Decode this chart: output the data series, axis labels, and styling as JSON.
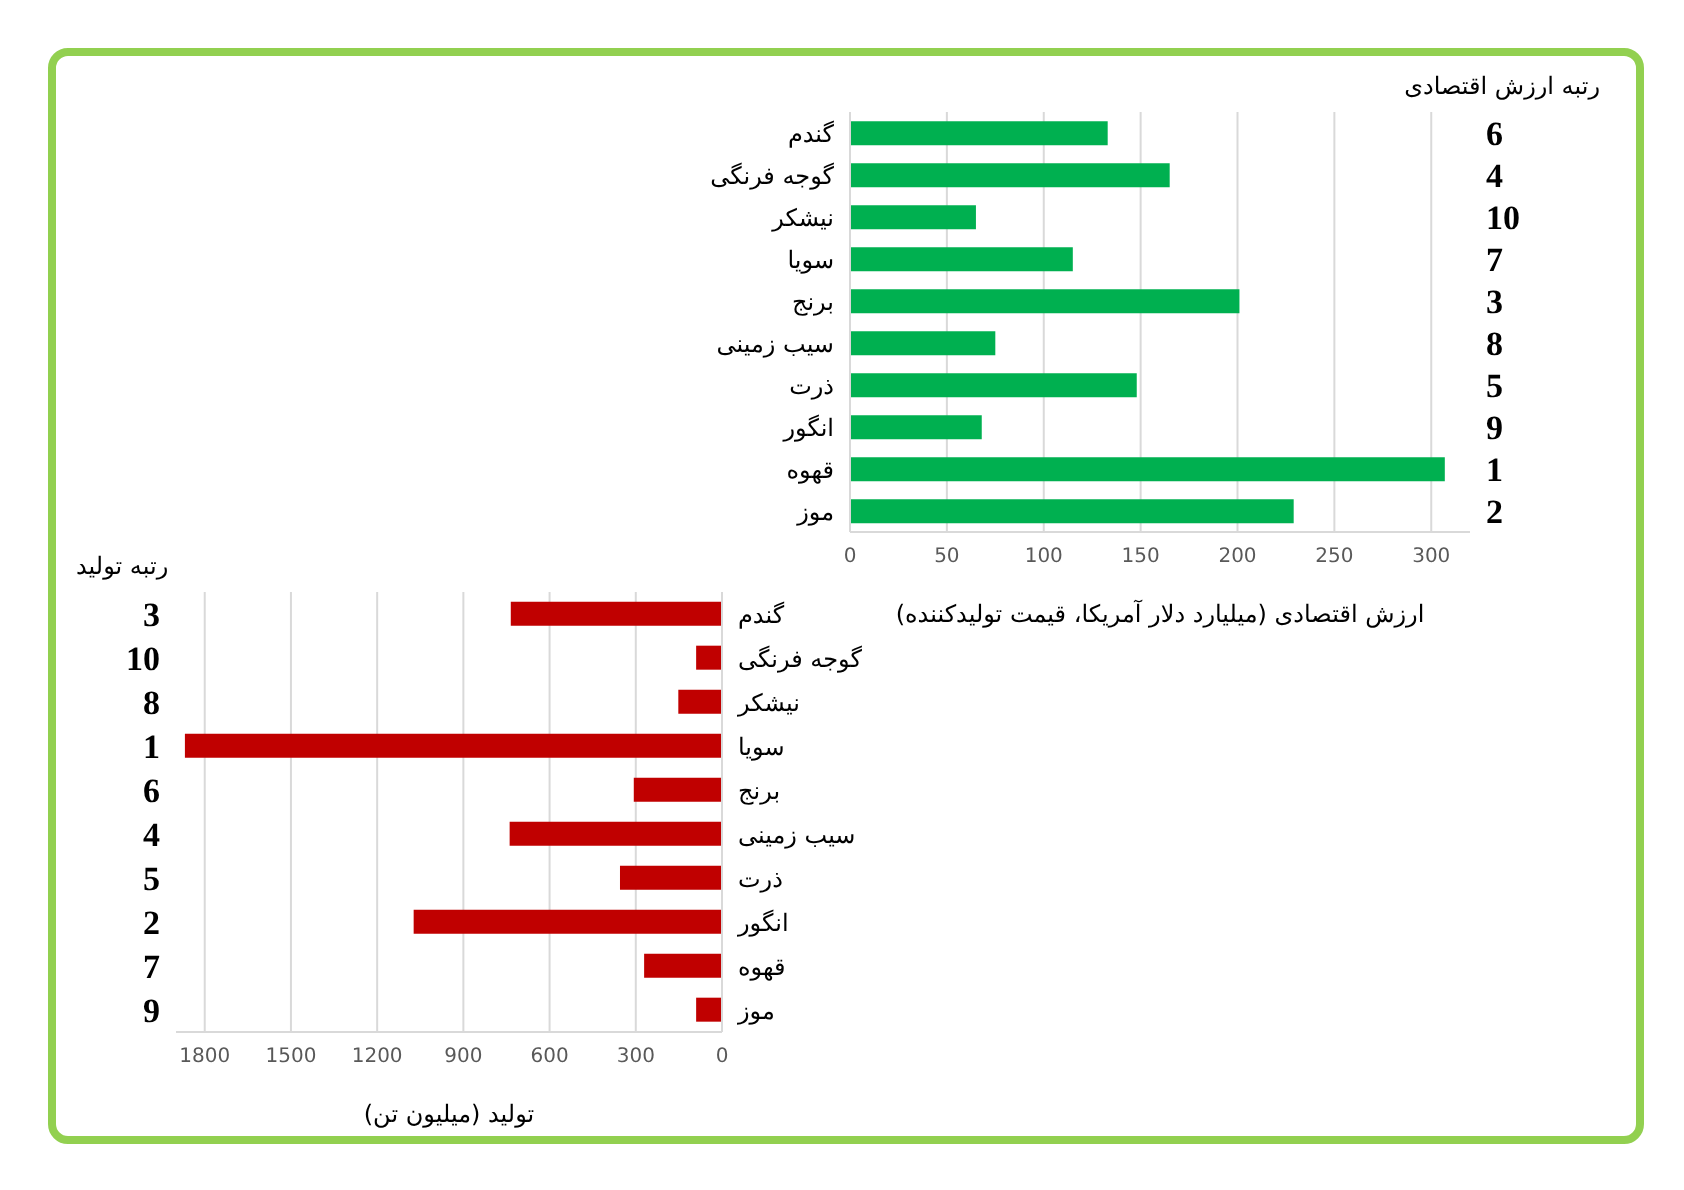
{
  "chart_data": [
    {
      "type": "bar",
      "orientation": "horizontal",
      "categories": [
        "گندم",
        "گوجه فرنگی",
        "نیشکر",
        "سویا",
        "برنج",
        "سیب زمینی",
        "ذرت",
        "انگور",
        "قهوه",
        "موز"
      ],
      "values": [
        133,
        165,
        65,
        115,
        201,
        75,
        148,
        68,
        307,
        229
      ],
      "color": "#00b050",
      "xlim": [
        0,
        320
      ],
      "xticks": [
        0,
        50,
        100,
        150,
        200,
        250,
        300
      ],
      "grid": "x",
      "xlabel": "ارزش اقتصادی (میلیارد دلار آمریکا، قیمت تولیدکننده)",
      "annotations": [
        "رتبه ارزش اقتصادی",
        "6",
        "4",
        "10",
        "7",
        "3",
        "8",
        "5",
        "9",
        "1",
        "2"
      ]
    },
    {
      "type": "bar",
      "orientation": "horizontal",
      "categories": [
        "گندم",
        "گوجه فرنگی",
        "نیشکر",
        "سویا",
        "برنج",
        "سیب زمینی",
        "ذرت",
        "انگور",
        "قهوه",
        "موز"
      ],
      "values": [
        735,
        90,
        152,
        1869,
        307,
        739,
        355,
        1073,
        271,
        90
      ],
      "color": "#c00000",
      "xlim": [
        1900,
        0
      ],
      "xticks": [
        1800,
        1500,
        1200,
        900,
        600,
        300,
        0
      ],
      "grid": "x",
      "xlabel": "تولید (میلیون تن)",
      "annotations": [
        "رتبه تولید",
        "3",
        "10",
        "8",
        "1",
        "6",
        "4",
        "5",
        "2",
        "7",
        "9"
      ]
    }
  ]
}
